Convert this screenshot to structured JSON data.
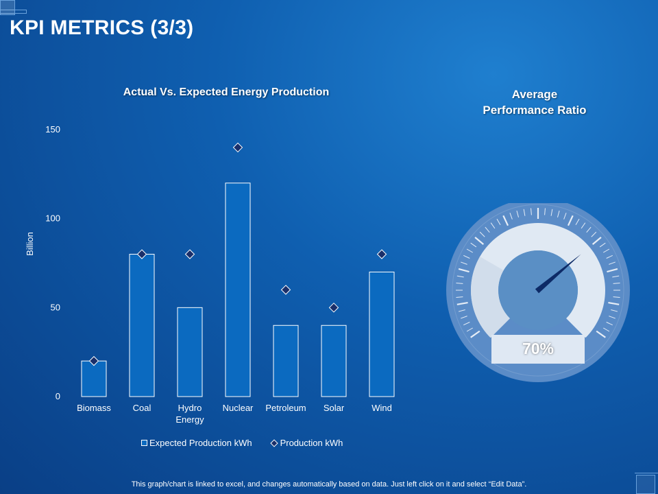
{
  "page": {
    "title": "KPI METRICS (3/3)",
    "footnote": "This graph/chart is linked to excel, and changes automatically based on data. Just left click on it and select “Edit Data”."
  },
  "gauge": {
    "title_line1": "Average",
    "title_line2": "Performance Ratio",
    "value_label": "70%",
    "value": 70,
    "colors": {
      "outer": "#5b8cc7",
      "band": "#e8eef6",
      "inner": "#5a8fc5",
      "needle": "#0d2a66",
      "value_box": "#dfe8f3"
    }
  },
  "chart_data": {
    "type": "bar",
    "title": "Actual Vs. Expected Energy Production",
    "ylabel": "Billion",
    "xlabel": "",
    "ylim": [
      0,
      150
    ],
    "yticks": [
      0,
      50,
      100,
      150
    ],
    "grid": false,
    "legend_position": "bottom",
    "categories": [
      "Biomass",
      "Coal",
      "Hydro Energy",
      "Nuclear",
      "Petroleum",
      "Solar",
      "Wind"
    ],
    "category_lines": [
      [
        "Biomass"
      ],
      [
        "Coal"
      ],
      [
        "Hydro",
        "Energy"
      ],
      [
        "Nuclear"
      ],
      [
        "Petroleum"
      ],
      [
        "Solar"
      ],
      [
        "Wind"
      ]
    ],
    "series": [
      {
        "name": "Expected Production kWh",
        "kind": "bar",
        "color": "#0b6ac0",
        "values": [
          20,
          80,
          50,
          120,
          40,
          40,
          70
        ]
      },
      {
        "name": "Production kWh",
        "kind": "marker",
        "color": "#1a2f6a",
        "values": [
          20,
          80,
          80,
          140,
          60,
          50,
          80
        ]
      }
    ]
  }
}
